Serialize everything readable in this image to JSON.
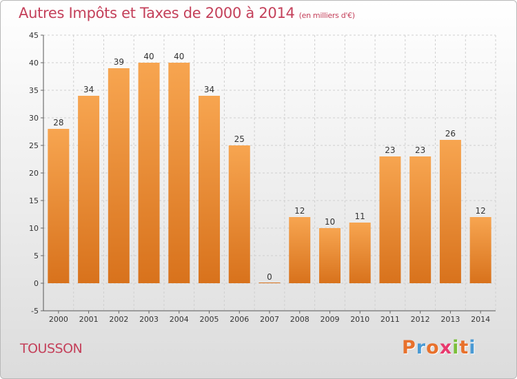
{
  "header": {
    "title": "Autres Impôts et Taxes de 2000 à 2014",
    "unit": "(en milliers d'€)"
  },
  "footer": {
    "place": "TOUSSON",
    "logo": {
      "letters": [
        "P",
        "r",
        "o",
        "x",
        "i",
        "t",
        "i"
      ],
      "colors": [
        "#e8712c",
        "#4a9ad4",
        "#e8712c",
        "#e83a6e",
        "#7bbf3a",
        "#e8712c",
        "#4a9ad4"
      ]
    }
  },
  "colors": {
    "bar_top": "#f7a550",
    "bar_bottom": "#d8721c",
    "title": "#c4405a"
  },
  "chart_data": {
    "type": "bar",
    "categories": [
      "2000",
      "2001",
      "2002",
      "2003",
      "2004",
      "2005",
      "2006",
      "2007",
      "2008",
      "2009",
      "2010",
      "2011",
      "2012",
      "2013",
      "2014"
    ],
    "values": [
      28,
      34,
      39,
      40,
      40,
      34,
      25,
      0,
      12,
      10,
      11,
      23,
      23,
      26,
      12
    ],
    "title": "Autres Impôts et Taxes de 2000 à 2014",
    "ylim": [
      -5,
      45
    ],
    "yticks": [
      -5,
      0,
      5,
      10,
      15,
      20,
      25,
      30,
      35,
      40,
      45
    ],
    "grid": true,
    "data_labels": true
  }
}
